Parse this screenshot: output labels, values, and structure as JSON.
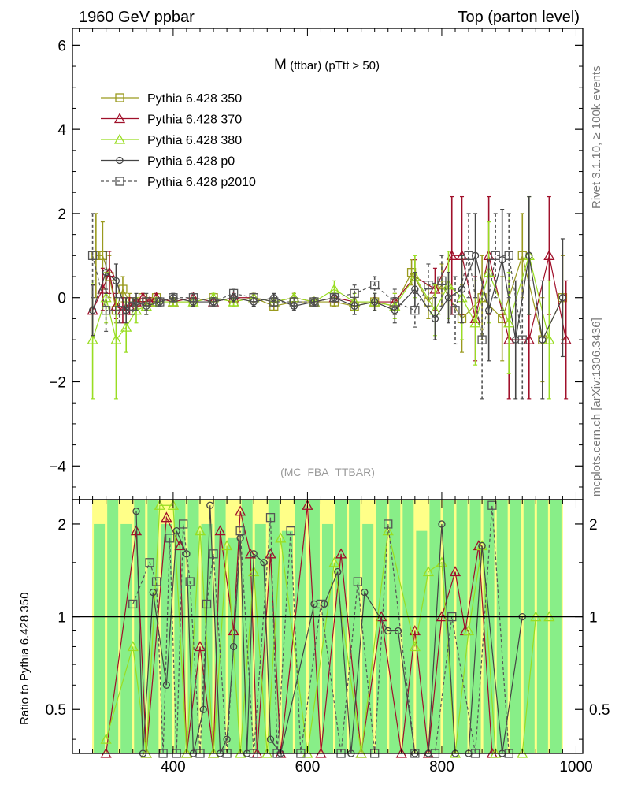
{
  "header": {
    "left": "1960 GeV ppbar",
    "right": "Top (parton level)"
  },
  "side_labels": {
    "rivet": "Rivet 3.1.10, ≥ 100k events",
    "mcplots": "mcplots.cern.ch [arXiv:1306.3436]"
  },
  "chart_data": [
    {
      "type": "line",
      "title_main": "M",
      "title_sub": "(ttbar) (pTtt > 50)",
      "watermark": "(MC_FBA_TTBAR)",
      "xlim": [
        250,
        1010
      ],
      "ylim": [
        -4.8,
        6.4
      ],
      "ytick_labels": [
        "−4",
        "−2",
        "0",
        "2",
        "4",
        "6"
      ],
      "ytick_values": [
        -4,
        -2,
        0,
        2,
        4,
        6
      ],
      "grid": false,
      "legend_position": "top-left",
      "series": [
        {
          "name": "Pythia 6.428 350",
          "color": "#9a9a1e",
          "marker": "square",
          "dash": "solid",
          "x": [
            285,
            295,
            305,
            315,
            325,
            335,
            345,
            355,
            365,
            375,
            400,
            430,
            460,
            490,
            520,
            550,
            580,
            610,
            640,
            670,
            700,
            730,
            755,
            780,
            800,
            830,
            860,
            890,
            920,
            950,
            980
          ],
          "y": [
            1.0,
            1.0,
            0.5,
            -0.3,
            0.2,
            -0.1,
            -0.1,
            0.0,
            -0.1,
            0.0,
            -0.1,
            -0.1,
            0.0,
            -0.1,
            0.0,
            -0.2,
            -0.1,
            -0.1,
            -0.1,
            -0.2,
            -0.1,
            -0.2,
            0.6,
            -0.1,
            0.3,
            -0.5,
            0.0,
            -0.5,
            1.0,
            -1.0,
            0.0
          ],
          "yerr": [
            1.0,
            0.8,
            0.5,
            0.3,
            0.3,
            0.2,
            0.1,
            0.1,
            0.1,
            0.1,
            0.1,
            0.1,
            0.1,
            0.1,
            0.1,
            0.1,
            0.1,
            0.1,
            0.1,
            0.1,
            0.1,
            0.2,
            0.3,
            0.4,
            0.5,
            0.8,
            1.0,
            1.0,
            1.0,
            1.0,
            1.0
          ]
        },
        {
          "name": "Pythia 6.428 370",
          "color": "#a0102a",
          "marker": "triangle",
          "dash": "solid",
          "x": [
            280,
            295,
            305,
            315,
            325,
            335,
            345,
            355,
            365,
            375,
            400,
            430,
            460,
            490,
            520,
            550,
            580,
            610,
            640,
            670,
            700,
            730,
            760,
            790,
            815,
            830,
            850,
            870,
            900,
            930,
            960,
            985
          ],
          "y": [
            -0.3,
            0.2,
            0.6,
            -0.2,
            -0.3,
            -0.2,
            -0.1,
            0.0,
            -0.1,
            0.0,
            -0.1,
            0.0,
            -0.1,
            0.0,
            0.0,
            -0.1,
            0.0,
            -0.1,
            0.0,
            -0.1,
            -0.1,
            -0.1,
            0.5,
            0.2,
            1.0,
            1.0,
            -0.5,
            1.0,
            -1.0,
            -1.0,
            1.0,
            -1.0
          ],
          "yerr": [
            0.6,
            0.5,
            0.5,
            0.3,
            0.3,
            0.2,
            0.1,
            0.1,
            0.1,
            0.1,
            0.1,
            0.1,
            0.1,
            0.1,
            0.1,
            0.1,
            0.1,
            0.1,
            0.1,
            0.1,
            0.1,
            0.2,
            0.4,
            0.5,
            1.4,
            1.4,
            1.0,
            1.4,
            1.4,
            1.4,
            1.4,
            1.4
          ]
        },
        {
          "name": "Pythia 6.428 380",
          "color": "#99dd22",
          "marker": "triangle",
          "dash": "solid",
          "x": [
            280,
            300,
            315,
            330,
            345,
            360,
            375,
            400,
            430,
            460,
            490,
            520,
            550,
            580,
            610,
            640,
            670,
            700,
            730,
            760,
            790,
            810,
            830,
            850,
            870,
            900,
            930,
            960
          ],
          "y": [
            -1.0,
            0.0,
            -1.0,
            -0.7,
            -0.3,
            -0.2,
            -0.1,
            -0.1,
            -0.1,
            0.0,
            -0.1,
            0.0,
            -0.1,
            0.0,
            -0.1,
            0.2,
            -0.1,
            -0.1,
            -0.2,
            0.5,
            -0.3,
            0.3,
            0.0,
            -0.6,
            0.6,
            -0.6,
            1.0,
            -1.0
          ],
          "yerr": [
            1.4,
            0.6,
            1.4,
            0.6,
            0.3,
            0.2,
            0.1,
            0.1,
            0.1,
            0.1,
            0.1,
            0.1,
            0.1,
            0.1,
            0.1,
            0.2,
            0.2,
            0.2,
            0.3,
            0.5,
            0.6,
            0.8,
            1.0,
            1.0,
            1.2,
            1.2,
            1.4,
            1.4
          ]
        },
        {
          "name": "Pythia 6.428 p0",
          "color": "#444444",
          "marker": "circle",
          "dash": "solid",
          "x": [
            280,
            300,
            315,
            330,
            345,
            360,
            380,
            400,
            430,
            460,
            490,
            520,
            550,
            580,
            610,
            640,
            670,
            700,
            730,
            760,
            790,
            810,
            830,
            850,
            870,
            890,
            910,
            930,
            950,
            980
          ],
          "y": [
            -0.3,
            0.6,
            0.4,
            -0.3,
            -0.1,
            -0.2,
            -0.1,
            0.0,
            -0.1,
            -0.1,
            0.0,
            -0.1,
            0.0,
            -0.2,
            -0.1,
            0.0,
            -0.2,
            -0.1,
            -0.3,
            0.2,
            -0.5,
            0.0,
            0.2,
            1.0,
            -0.3,
            0.9,
            -1.0,
            1.0,
            -1.0,
            0.0
          ],
          "yerr": [
            0.6,
            0.5,
            0.4,
            0.3,
            0.2,
            0.2,
            0.1,
            0.1,
            0.1,
            0.1,
            0.1,
            0.1,
            0.1,
            0.1,
            0.1,
            0.1,
            0.2,
            0.2,
            0.3,
            0.4,
            0.5,
            0.6,
            0.8,
            1.0,
            1.2,
            1.2,
            1.4,
            1.4,
            1.4,
            1.4
          ]
        },
        {
          "name": "Pythia 6.428 p2010",
          "color": "#555555",
          "marker": "square",
          "dash": "dashed",
          "x": [
            280,
            300,
            320,
            340,
            360,
            380,
            400,
            430,
            460,
            490,
            520,
            550,
            580,
            610,
            640,
            670,
            700,
            730,
            760,
            780,
            800,
            820,
            840,
            860,
            880,
            900,
            920
          ],
          "y": [
            1.0,
            -0.3,
            -0.3,
            -0.2,
            -0.1,
            -0.1,
            0.0,
            0.0,
            -0.1,
            0.1,
            0.0,
            -0.1,
            -0.1,
            -0.1,
            0.0,
            0.1,
            0.3,
            -0.1,
            -0.3,
            0.3,
            0.4,
            -0.3,
            1.0,
            -1.0,
            1.0,
            1.0,
            -1.0
          ],
          "yerr": [
            1.0,
            0.5,
            0.3,
            0.2,
            0.2,
            0.1,
            0.1,
            0.1,
            0.1,
            0.1,
            0.1,
            0.1,
            0.1,
            0.1,
            0.1,
            0.2,
            0.2,
            0.3,
            0.4,
            0.5,
            0.6,
            0.8,
            1.0,
            1.4,
            1.0,
            1.0,
            1.4
          ]
        }
      ]
    },
    {
      "type": "line",
      "ylabel": "Ratio to Pythia 6.428 350",
      "xlim": [
        250,
        1010
      ],
      "ylim_log": [
        0.36,
        2.4
      ],
      "yscale": "log",
      "xtick_labels": [
        "400",
        "600",
        "800",
        "1000"
      ],
      "xtick_values": [
        400,
        600,
        800,
        1000
      ],
      "ytick_labels": [
        "0.5",
        "1",
        "2"
      ],
      "ytick_values": [
        0.5,
        1,
        2
      ],
      "reference_line": 1,
      "bands": {
        "x": [
          290,
          310,
          330,
          350,
          370,
          390,
          410,
          430,
          450,
          470,
          490,
          510,
          530,
          550,
          570,
          590,
          610,
          630,
          650,
          670,
          690,
          710,
          730,
          750,
          770,
          790,
          810,
          830,
          850,
          870,
          890,
          910,
          930,
          950,
          970
        ],
        "green_hi": [
          2.0,
          2.4,
          2.0,
          2.4,
          2.4,
          2.0,
          2.4,
          2.4,
          2.0,
          2.4,
          1.8,
          2.4,
          2.0,
          2.4,
          1.9,
          2.4,
          2.4,
          2.0,
          2.4,
          2.4,
          2.0,
          2.4,
          2.4,
          2.4,
          1.9,
          2.4,
          2.4,
          2.4,
          2.4,
          2.4,
          2.4,
          2.4,
          2.4,
          2.4,
          2.4
        ],
        "yellow_hi": [
          2.4,
          2.4,
          2.4,
          2.4,
          2.4,
          2.4,
          2.4,
          2.4,
          2.4,
          2.4,
          2.4,
          2.4,
          2.4,
          2.4,
          2.4,
          2.4,
          2.4,
          2.4,
          2.4,
          2.4,
          2.4,
          2.4,
          2.4,
          2.4,
          2.4,
          2.4,
          2.4,
          2.4,
          2.4,
          2.4,
          2.4,
          2.4,
          2.4,
          2.4,
          2.4
        ]
      },
      "series": [
        {
          "name": "Pythia 6.428 370",
          "color": "#a0102a",
          "marker": "triangle",
          "dash": "solid",
          "x": [
            300,
            345,
            360,
            390,
            410,
            420,
            440,
            460,
            470,
            490,
            500,
            515,
            525,
            545,
            560,
            600,
            620,
            650,
            680,
            710,
            740,
            760,
            780,
            800,
            820,
            835,
            855,
            875
          ],
          "y": [
            0.3,
            1.9,
            0.3,
            2.1,
            1.7,
            0.3,
            0.8,
            0.3,
            1.9,
            0.9,
            2.2,
            1.6,
            0.3,
            1.6,
            0.3,
            2.3,
            0.3,
            1.6,
            0.3,
            1.0,
            0.3,
            0.9,
            0.3,
            1.0,
            1.4,
            0.9,
            1.7,
            0.34
          ]
        },
        {
          "name": "Pythia 6.428 380",
          "color": "#99dd22",
          "marker": "triangle",
          "dash": "solid",
          "x": [
            300,
            340,
            360,
            380,
            400,
            420,
            440,
            460,
            480,
            500,
            520,
            540,
            560,
            600,
            640,
            680,
            720,
            760,
            780,
            800,
            820,
            840,
            860,
            880,
            920,
            940,
            960
          ],
          "y": [
            0.4,
            0.8,
            0.3,
            2.3,
            2.3,
            0.3,
            1.9,
            0.3,
            1.7,
            0.3,
            1.4,
            0.3,
            1.8,
            0.3,
            1.5,
            0.3,
            1.9,
            0.8,
            1.4,
            1.5,
            0.3,
            0.9,
            1.7,
            0.3,
            0.3,
            1.0,
            1.0
          ]
        },
        {
          "name": "Pythia 6.428 p0",
          "color": "#444444",
          "marker": "circle",
          "dash": "solid",
          "x": [
            345,
            355,
            370,
            390,
            405,
            420,
            430,
            445,
            455,
            470,
            480,
            490,
            500,
            510,
            520,
            535,
            545,
            560,
            610,
            625,
            645,
            665,
            685,
            720,
            735,
            760,
            780,
            800,
            820,
            840,
            860,
            890,
            920
          ],
          "y": [
            2.2,
            0.3,
            1.2,
            0.6,
            1.9,
            1.6,
            0.3,
            0.5,
            2.3,
            0.3,
            0.4,
            0.8,
            1.8,
            0.3,
            1.6,
            1.5,
            0.4,
            0.3,
            1.1,
            1.1,
            1.4,
            0.3,
            1.2,
            0.9,
            0.9,
            0.3,
            0.3,
            2.0,
            0.3,
            0.3,
            1.7,
            0.3,
            1.0
          ]
        },
        {
          "name": "Pythia 6.428 p2010",
          "color": "#555555",
          "marker": "square",
          "dash": "dashed",
          "x": [
            340,
            365,
            375,
            385,
            395,
            405,
            415,
            425,
            440,
            450,
            460,
            480,
            500,
            520,
            545,
            555,
            575,
            590,
            620,
            650,
            675,
            700,
            720,
            760,
            790,
            815,
            850,
            875,
            900
          ],
          "y": [
            1.1,
            1.5,
            1.3,
            0.3,
            1.8,
            0.3,
            2.0,
            1.3,
            0.3,
            1.1,
            1.6,
            0.3,
            1.9,
            0.3,
            2.1,
            0.3,
            1.9,
            0.3,
            1.1,
            0.3,
            1.3,
            0.3,
            2.0,
            0.3,
            0.3,
            1.0,
            0.3,
            2.3,
            0.3
          ]
        }
      ]
    }
  ]
}
